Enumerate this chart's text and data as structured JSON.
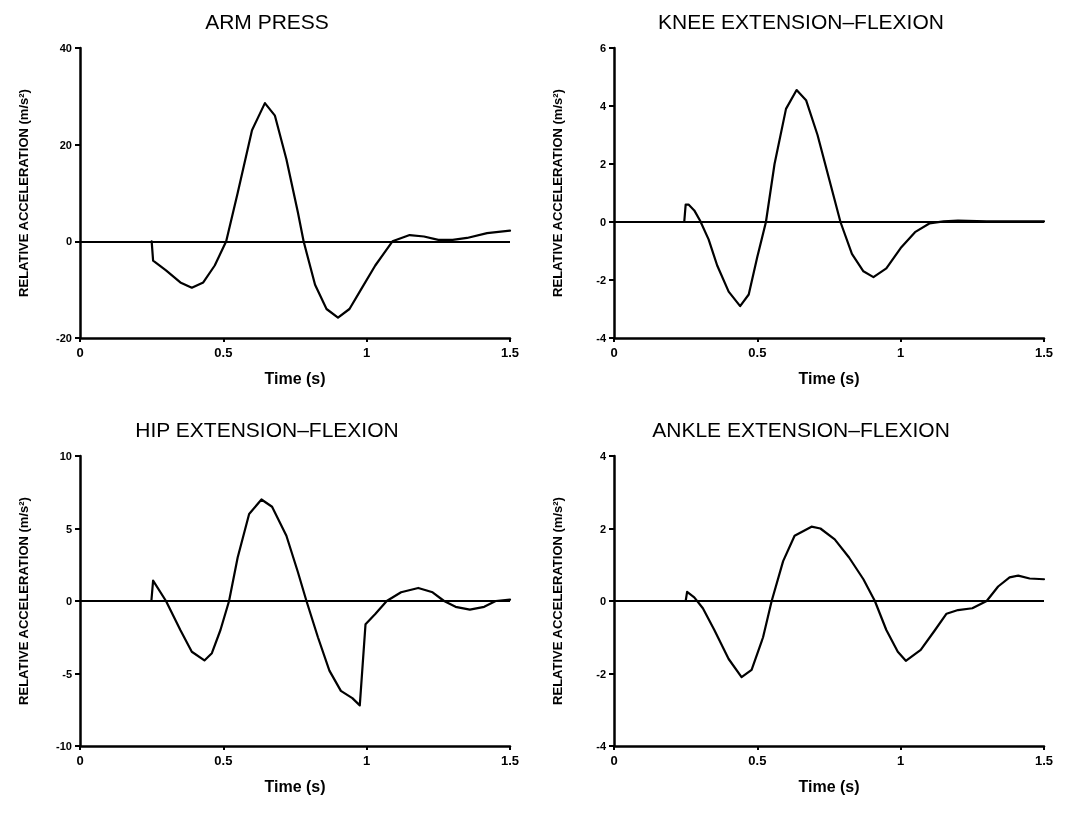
{
  "chart_data": [
    {
      "type": "line",
      "title": "ARM PRESS",
      "xlabel": "Time (s)",
      "ylabel": "RELATIVE ACCELERATION (m/s²)",
      "xlim": [
        0,
        1.5
      ],
      "xticks": [
        0,
        0.5,
        1,
        1.5
      ],
      "ylim": [
        -20,
        40
      ],
      "yticks": [
        -20,
        0,
        20,
        40
      ],
      "marker": "none",
      "line_style": "solid",
      "grid": false,
      "ref_lines": [
        {
          "axis": "y",
          "value": 0,
          "color": "#000000"
        }
      ],
      "x": [
        0.25,
        0.255,
        0.3,
        0.35,
        0.39,
        0.43,
        0.47,
        0.51,
        0.55,
        0.6,
        0.645,
        0.68,
        0.72,
        0.76,
        0.78,
        0.82,
        0.86,
        0.9,
        0.94,
        0.98,
        1.03,
        1.09,
        1.15,
        1.2,
        1.25,
        1.3,
        1.35,
        1.42,
        1.5
      ],
      "series": [
        {
          "color": "#000000",
          "values": [
            0,
            -4,
            -6,
            -8.5,
            -9.6,
            -8.5,
            -5,
            0,
            10,
            23,
            28.6,
            26,
            17,
            6,
            0,
            -9,
            -14,
            -15.8,
            -14,
            -10,
            -5,
            0,
            1.3,
            1,
            0.3,
            0.3,
            0.7,
            1.7,
            2.2
          ]
        }
      ]
    },
    {
      "type": "line",
      "title": "KNEE EXTENSION–FLEXION",
      "xlabel": "Time (s)",
      "ylabel": "RELATIVE ACCELERATION (m/s²)",
      "xlim": [
        0,
        1.5
      ],
      "xticks": [
        0,
        0.5,
        1,
        1.5
      ],
      "ylim": [
        -4,
        6
      ],
      "yticks": [
        -4,
        -2,
        0,
        2,
        4,
        6
      ],
      "marker": "none",
      "line_style": "solid",
      "grid": false,
      "ref_lines": [
        {
          "axis": "y",
          "value": 0,
          "color": "#000000"
        }
      ],
      "x": [
        0.245,
        0.25,
        0.26,
        0.28,
        0.3,
        0.33,
        0.36,
        0.4,
        0.44,
        0.47,
        0.5,
        0.53,
        0.56,
        0.6,
        0.637,
        0.67,
        0.71,
        0.75,
        0.79,
        0.83,
        0.87,
        0.905,
        0.95,
        1.0,
        1.05,
        1.1,
        1.15,
        1.2,
        1.3,
        1.5
      ],
      "series": [
        {
          "color": "#000000",
          "values": [
            0,
            0.6,
            0.6,
            0.4,
            0.05,
            -0.6,
            -1.5,
            -2.4,
            -2.9,
            -2.5,
            -1.2,
            0,
            2,
            3.9,
            4.55,
            4.2,
            3,
            1.5,
            0,
            -1.1,
            -1.7,
            -1.9,
            -1.6,
            -0.9,
            -0.35,
            -0.05,
            0.02,
            0.05,
            0.02,
            0.02
          ]
        }
      ]
    },
    {
      "type": "line",
      "title": "HIP EXTENSION–FLEXION",
      "xlabel": "Time (s)",
      "ylabel": "RELATIVE ACCELERATION (m/s²)",
      "xlim": [
        0,
        1.5
      ],
      "xticks": [
        0,
        0.5,
        1,
        1.5
      ],
      "ylim": [
        -10,
        10
      ],
      "yticks": [
        -10,
        -5,
        0,
        5,
        10
      ],
      "marker": "none",
      "line_style": "solid",
      "grid": false,
      "ref_lines": [
        {
          "axis": "y",
          "value": 0,
          "color": "#000000"
        }
      ],
      "x": [
        0.249,
        0.255,
        0.3,
        0.35,
        0.39,
        0.434,
        0.46,
        0.49,
        0.52,
        0.55,
        0.59,
        0.633,
        0.67,
        0.72,
        0.76,
        0.79,
        0.83,
        0.87,
        0.91,
        0.95,
        0.976,
        0.996,
        1.03,
        1.07,
        1.12,
        1.18,
        1.23,
        1.27,
        1.31,
        1.36,
        1.41,
        1.45,
        1.5
      ],
      "series": [
        {
          "color": "#000000",
          "values": [
            0,
            1.4,
            0,
            -2,
            -3.5,
            -4.1,
            -3.6,
            -2,
            0,
            3,
            6,
            7,
            6.5,
            4.5,
            2,
            0,
            -2.5,
            -4.8,
            -6.2,
            -6.7,
            -7.2,
            -1.6,
            -0.9,
            0,
            0.6,
            0.9,
            0.6,
            0,
            -0.4,
            -0.6,
            -0.4,
            0,
            0.1
          ]
        }
      ]
    },
    {
      "type": "line",
      "title": "ANKLE EXTENSION–FLEXION",
      "xlabel": "Time (s)",
      "ylabel": "RELATIVE ACCELERATION (m/s²)",
      "xlim": [
        0,
        1.5
      ],
      "xticks": [
        0,
        0.5,
        1,
        1.5
      ],
      "ylim": [
        -4,
        4
      ],
      "yticks": [
        -4,
        -2,
        0,
        2,
        4
      ],
      "marker": "none",
      "line_style": "solid",
      "grid": false,
      "ref_lines": [
        {
          "axis": "y",
          "value": 0,
          "color": "#000000"
        }
      ],
      "x": [
        0.25,
        0.255,
        0.28,
        0.31,
        0.35,
        0.4,
        0.445,
        0.48,
        0.52,
        0.55,
        0.59,
        0.63,
        0.689,
        0.72,
        0.77,
        0.82,
        0.87,
        0.91,
        0.95,
        0.99,
        1.018,
        1.07,
        1.12,
        1.16,
        1.2,
        1.25,
        1.3,
        1.34,
        1.38,
        1.41,
        1.45,
        1.5
      ],
      "series": [
        {
          "color": "#000000",
          "values": [
            0,
            0.25,
            0.1,
            -0.2,
            -0.8,
            -1.6,
            -2.1,
            -1.9,
            -1,
            0,
            1.1,
            1.8,
            2.05,
            2,
            1.7,
            1.2,
            0.6,
            0,
            -0.8,
            -1.4,
            -1.65,
            -1.35,
            -0.8,
            -0.35,
            -0.25,
            -0.2,
            0,
            0.4,
            0.65,
            0.7,
            0.62,
            0.6
          ]
        }
      ]
    }
  ]
}
